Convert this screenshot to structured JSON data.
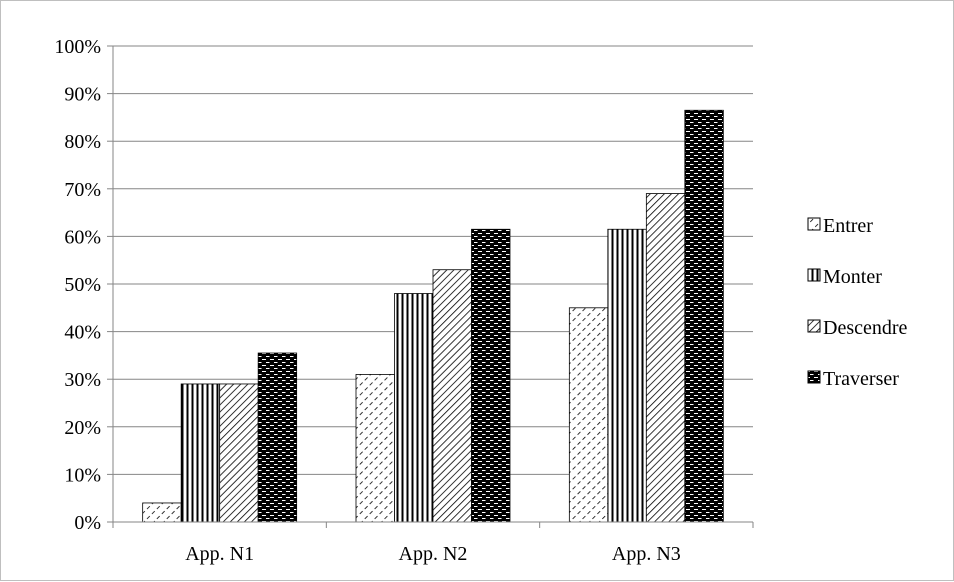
{
  "chart_data": {
    "type": "bar",
    "categories": [
      "App. N1",
      "App. N2",
      "App. N3"
    ],
    "series": [
      {
        "name": "Entrer",
        "values": [
          4,
          31,
          45
        ],
        "pattern": "diag-dashed"
      },
      {
        "name": "Monter",
        "values": [
          29,
          48,
          61.5
        ],
        "pattern": "vertical-lines"
      },
      {
        "name": "Descendre",
        "values": [
          29,
          53,
          69
        ],
        "pattern": "diag-dense"
      },
      {
        "name": "Traverser",
        "values": [
          35.5,
          61.5,
          86.5
        ],
        "pattern": "dark-brick"
      }
    ],
    "ylim": [
      0,
      100
    ],
    "yticks": [
      "0%",
      "10%",
      "20%",
      "30%",
      "40%",
      "50%",
      "60%",
      "70%",
      "80%",
      "90%",
      "100%"
    ],
    "grid": true,
    "legend_position": "right",
    "colors": {
      "gridline": "#868686",
      "axis": "#868686",
      "bar_fill": "#000000",
      "bar_bg": "#ffffff"
    }
  }
}
